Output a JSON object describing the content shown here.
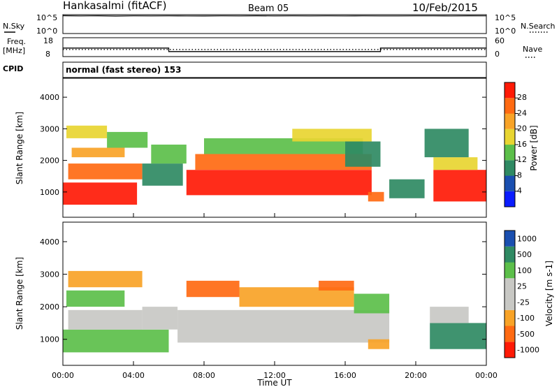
{
  "header": {
    "station": "Hankasalmi (fitACF)",
    "beam": "Beam 05",
    "date": "10/Feb/2015"
  },
  "colors": {
    "power": [
      "#0a1cff",
      "#1a4fb0",
      "#2f8a63",
      "#5cbf4a",
      "#e8d531",
      "#f8a327",
      "#ff6a12",
      "#ff1a06"
    ],
    "velocity": [
      "#ff1a06",
      "#ff6a12",
      "#f8a327",
      "#c8c8c4",
      "#c8c8c4",
      "#5cbf4a",
      "#2f8a63",
      "#1a4fb0"
    ]
  },
  "summary": {
    "left_labels": [
      "N.Sky",
      "10^5",
      "10^0"
    ],
    "right_labels": [
      "10^5",
      "10^0",
      "N.Search"
    ],
    "freq_label": "Freq.",
    "freq_unit": "[MHz]",
    "freq_ticks": [
      "18",
      "8"
    ],
    "nave_ticks": [
      "60",
      "0"
    ],
    "nave_label": "Nave",
    "cpid_label": "CPID",
    "mode_text": "normal (fast stereo) 153"
  },
  "chart_data": [
    {
      "type": "line",
      "title": "",
      "series": [
        {
          "name": "N.Sky",
          "values_log10": [
            4.9,
            4.85,
            4.88,
            4.8,
            4.87,
            4.84,
            4.86,
            4.85,
            4.83,
            4.86,
            4.84,
            4.88,
            4.85,
            4.86,
            4.84,
            4.87,
            4.85,
            4.86,
            4.84,
            4.85,
            4.87,
            4.86,
            4.85,
            4.88,
            4.86
          ]
        }
      ],
      "x": [
        0,
        1,
        2,
        3,
        4,
        5,
        6,
        7,
        8,
        9,
        10,
        11,
        12,
        13,
        14,
        15,
        16,
        17,
        18,
        19,
        20,
        21,
        22,
        23,
        24
      ],
      "ylabel": "N.Sky",
      "ylim_log10": [
        0,
        5
      ]
    },
    {
      "type": "line",
      "title": "",
      "series": [
        {
          "name": "Freq.",
          "segments": [
            {
              "x": [
                0,
                6
              ],
              "y": 12.5
            },
            {
              "x": [
                6,
                18
              ],
              "y": 10.5
            },
            {
              "x": [
                18,
                24
              ],
              "y": 12.5
            }
          ]
        },
        {
          "name": "Nave",
          "segments": [
            {
              "x": [
                0,
                24
              ],
              "y": 22
            }
          ]
        }
      ],
      "ylim_freq": [
        8,
        18
      ],
      "ylim_nave": [
        0,
        60
      ]
    },
    {
      "type": "heatmap",
      "title": "",
      "xlabel": "",
      "ylabel": "Slant Range [km]",
      "x_ticks": [
        "00:00",
        "04:00",
        "08:00",
        "12:00",
        "16:00",
        "20:00",
        "00:00"
      ],
      "xlim_hours": [
        0,
        24
      ],
      "y_ticks": [
        1000,
        2000,
        3000,
        4000
      ],
      "ylim_km": [
        200,
        4600
      ],
      "colorbar": {
        "label": "Power [dB]",
        "ticks": [
          "28",
          "24",
          "20",
          "16",
          "12",
          "8",
          "4"
        ]
      },
      "regions": [
        {
          "t0": 0.0,
          "t1": 4.2,
          "r0": 600,
          "r1": 1300,
          "level": 7
        },
        {
          "t0": 0.3,
          "t1": 4.5,
          "r0": 1400,
          "r1": 1900,
          "level": 6
        },
        {
          "t0": 0.5,
          "t1": 3.5,
          "r0": 2100,
          "r1": 2400,
          "level": 5
        },
        {
          "t0": 0.2,
          "t1": 2.5,
          "r0": 2700,
          "r1": 3100,
          "level": 4
        },
        {
          "t0": 2.5,
          "t1": 4.8,
          "r0": 2400,
          "r1": 2900,
          "level": 3
        },
        {
          "t0": 4.5,
          "t1": 6.8,
          "r0": 1200,
          "r1": 1900,
          "level": 2
        },
        {
          "t0": 5.0,
          "t1": 7.0,
          "r0": 1900,
          "r1": 2500,
          "level": 3
        },
        {
          "t0": 7.0,
          "t1": 17.5,
          "r0": 900,
          "r1": 1700,
          "level": 7
        },
        {
          "t0": 7.5,
          "t1": 17.5,
          "r0": 1700,
          "r1": 2200,
          "level": 6
        },
        {
          "t0": 8.0,
          "t1": 17.0,
          "r0": 2200,
          "r1": 2700,
          "level": 3
        },
        {
          "t0": 13.0,
          "t1": 17.5,
          "r0": 2600,
          "r1": 3000,
          "level": 4
        },
        {
          "t0": 16.0,
          "t1": 18.0,
          "r0": 1800,
          "r1": 2600,
          "level": 2
        },
        {
          "t0": 17.3,
          "t1": 18.2,
          "r0": 700,
          "r1": 1000,
          "level": 6
        },
        {
          "t0": 18.5,
          "t1": 20.5,
          "r0": 800,
          "r1": 1400,
          "level": 2
        },
        {
          "t0": 21.0,
          "t1": 24.0,
          "r0": 700,
          "r1": 1700,
          "level": 7
        },
        {
          "t0": 21.0,
          "t1": 23.5,
          "r0": 1700,
          "r1": 2100,
          "level": 4
        },
        {
          "t0": 20.5,
          "t1": 23.0,
          "r0": 2100,
          "r1": 3000,
          "level": 2
        }
      ]
    },
    {
      "type": "heatmap",
      "title": "",
      "xlabel": "Time UT",
      "ylabel": "Slant Range [km]",
      "x_ticks": [
        "00:00",
        "04:00",
        "08:00",
        "12:00",
        "16:00",
        "20:00",
        "00:00"
      ],
      "xlim_hours": [
        0,
        24
      ],
      "y_ticks": [
        1000,
        2000,
        3000,
        4000
      ],
      "ylim_km": [
        200,
        4600
      ],
      "colorbar": {
        "label": "Velocity [m s-1]",
        "ticks": [
          "1000",
          "500",
          "100",
          "25",
          "-25",
          "-100",
          "-500",
          "-1000"
        ]
      },
      "regions": [
        {
          "t0": 0.0,
          "t1": 6.0,
          "r0": 600,
          "r1": 1300,
          "level": 5
        },
        {
          "t0": 0.3,
          "t1": 4.5,
          "r0": 1300,
          "r1": 1900,
          "level": 4
        },
        {
          "t0": 0.2,
          "t1": 3.5,
          "r0": 2000,
          "r1": 2500,
          "level": 5
        },
        {
          "t0": 0.3,
          "t1": 4.5,
          "r0": 2600,
          "r1": 3100,
          "level": 2
        },
        {
          "t0": 4.5,
          "t1": 6.5,
          "r0": 1300,
          "r1": 2000,
          "level": 4
        },
        {
          "t0": 6.5,
          "t1": 18.5,
          "r0": 900,
          "r1": 1900,
          "level": 4
        },
        {
          "t0": 7.0,
          "t1": 10.0,
          "r0": 2300,
          "r1": 2800,
          "level": 1
        },
        {
          "t0": 10.0,
          "t1": 16.5,
          "r0": 2000,
          "r1": 2600,
          "level": 2
        },
        {
          "t0": 14.5,
          "t1": 16.5,
          "r0": 2500,
          "r1": 2800,
          "level": 1
        },
        {
          "t0": 16.5,
          "t1": 18.5,
          "r0": 1800,
          "r1": 2400,
          "level": 5
        },
        {
          "t0": 17.3,
          "t1": 18.5,
          "r0": 700,
          "r1": 1000,
          "level": 2
        },
        {
          "t0": 20.8,
          "t1": 24.0,
          "r0": 700,
          "r1": 1500,
          "level": 6
        },
        {
          "t0": 20.8,
          "t1": 23.0,
          "r0": 1500,
          "r1": 2000,
          "level": 4
        }
      ]
    }
  ]
}
